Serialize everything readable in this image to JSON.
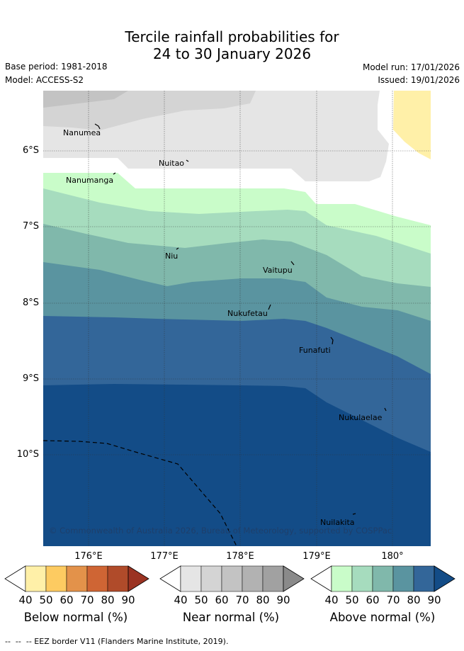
{
  "title": {
    "line1": "Tercile rainfall probabilities for",
    "line2": "24 to 30 January 2026"
  },
  "meta": {
    "base_period": "Base period: 1981-2018",
    "model": "Model: ACCESS-S2",
    "model_run": "Model run: 17/01/2026",
    "issued": "Issued: 19/01/2026"
  },
  "map": {
    "lat_labels": [
      "6°S",
      "7°S",
      "8°S",
      "9°S",
      "10°S"
    ],
    "lon_labels": [
      "176°E",
      "177°E",
      "178°E",
      "179°E",
      "180°"
    ],
    "places": [
      "Nanumea",
      "Nuitao",
      "Nanumanga",
      "Niu",
      "Vaitupu",
      "Nukufetau",
      "Funafuti",
      "Nukulaelae",
      "Nuilakita"
    ],
    "copyright": "© Commonwealth of Australia 2026, Bureau of Meteorology, supported by COSPPac"
  },
  "colorbars": [
    {
      "label": "Below normal (%)",
      "ticks": [
        "40",
        "50",
        "60",
        "70",
        "80",
        "90"
      ],
      "colors": [
        "#fff0a8",
        "#fdcb61",
        "#e3924a",
        "#cf6534",
        "#b04b2a",
        "#9b3322"
      ]
    },
    {
      "label": "Near normal (%)",
      "ticks": [
        "40",
        "50",
        "60",
        "70",
        "80",
        "90"
      ],
      "colors": [
        "#e5e5e5",
        "#d4d4d4",
        "#c3c3c3",
        "#b2b2b2",
        "#a1a1a1",
        "#8a8a8a"
      ]
    },
    {
      "label": "Above normal (%)",
      "ticks": [
        "40",
        "50",
        "60",
        "70",
        "80",
        "90"
      ],
      "colors": [
        "#c9fcc9",
        "#a6dcbe",
        "#80b8ab",
        "#5a94a0",
        "#336699",
        "#134c87"
      ]
    }
  ],
  "footer": "--  --  -- EEZ border V11 (Flanders Marine Institute, 2019)."
}
